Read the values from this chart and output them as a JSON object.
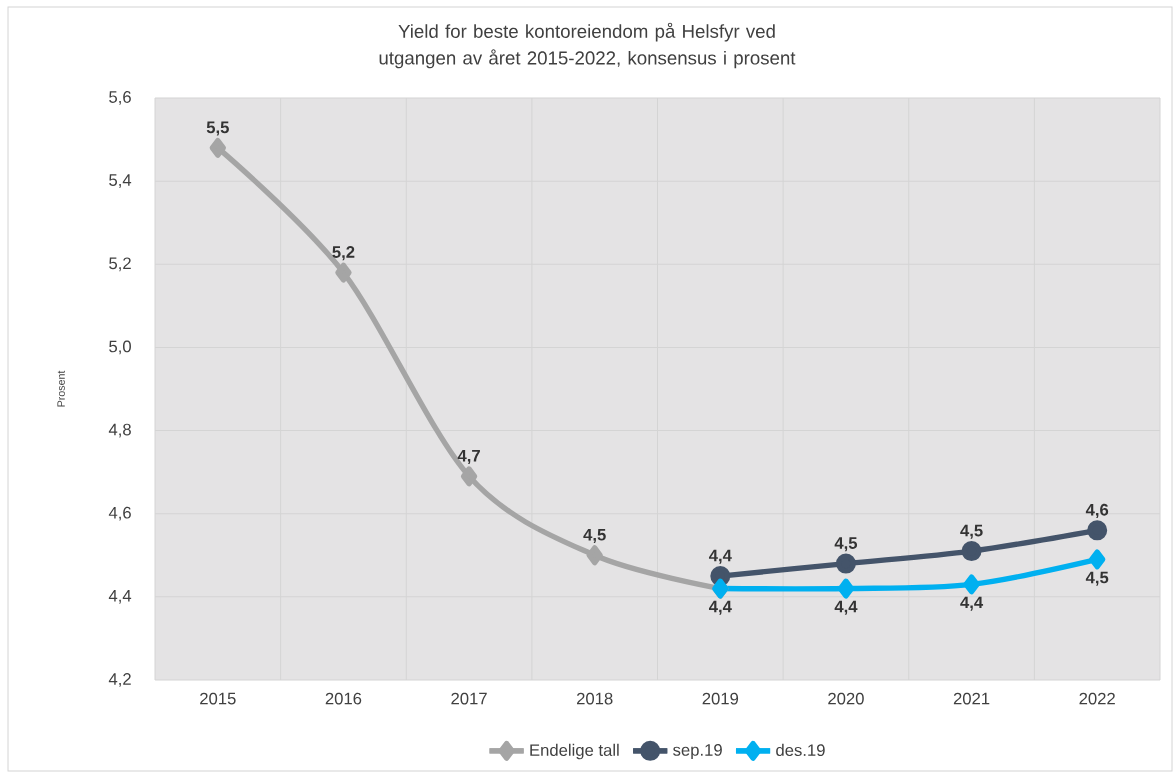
{
  "chart_data": {
    "type": "line",
    "title": "Yield for beste kontoreiendom på Helsfyr ved utgangen av året 2015-2022, konsensus i prosent",
    "ylabel": "Prosent",
    "categories": [
      "2015",
      "2016",
      "2017",
      "2018",
      "2019",
      "2020",
      "2021",
      "2022"
    ],
    "series": [
      {
        "name": "Endelige tall",
        "color": "#a5a5a5",
        "marker": "diamond",
        "values": [
          5.48,
          5.18,
          4.69,
          4.5,
          4.42,
          null,
          null,
          null
        ],
        "value_labels": [
          "5,5",
          "5,2",
          "4,7",
          "4,5",
          null,
          null,
          null,
          null
        ]
      },
      {
        "name": "sep.19",
        "color": "#44546a",
        "marker": "circle",
        "values": [
          null,
          null,
          null,
          null,
          4.45,
          4.48,
          4.51,
          4.56
        ],
        "value_labels": [
          null,
          null,
          null,
          null,
          "4,4",
          "4,5",
          "4,5",
          "4,6"
        ]
      },
      {
        "name": "des.19",
        "color": "#00b0f0",
        "marker": "diamond",
        "values": [
          null,
          null,
          null,
          null,
          4.42,
          4.42,
          4.43,
          4.49
        ],
        "value_labels": [
          null,
          null,
          null,
          null,
          "4,4",
          "4,4",
          "4,4",
          "4,5"
        ]
      }
    ],
    "ylim": [
      4.2,
      5.6
    ],
    "yticks": [
      {
        "value": 4.2,
        "label": "4,2"
      },
      {
        "value": 4.4,
        "label": "4,4"
      },
      {
        "value": 4.6,
        "label": "4,6"
      },
      {
        "value": 4.8,
        "label": "4,8"
      },
      {
        "value": 5.0,
        "label": "5,0"
      },
      {
        "value": 5.2,
        "label": "5,2"
      },
      {
        "value": 5.4,
        "label": "5,4"
      },
      {
        "value": 5.6,
        "label": "5,6"
      }
    ],
    "grid": true,
    "legend": "bottom",
    "line_style": "solid"
  }
}
